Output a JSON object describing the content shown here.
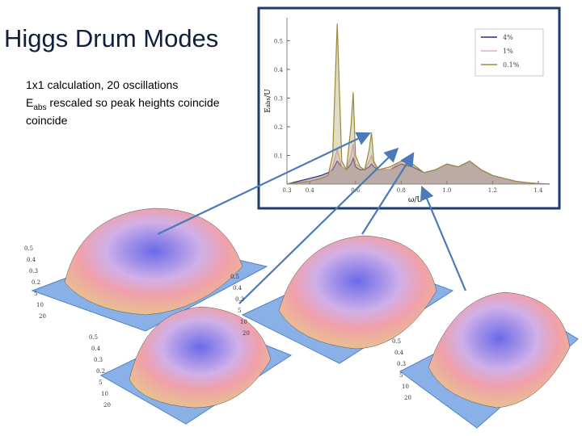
{
  "slide": {
    "title": "Higgs Drum Modes",
    "body": {
      "line1": "1x1  calculation, 20 oscillations",
      "line2_main": "E",
      "line2_sub": "abs",
      "line2_tail": " rescaled so peak heights coincide",
      "line3": "coincide"
    }
  },
  "chart_data": {
    "type": "line",
    "x_label": "ω/U",
    "y_label_main": "E",
    "y_label_sub": "abs",
    "y_label_tail": "/U",
    "x": [
      0.3,
      0.35,
      0.4,
      0.45,
      0.48,
      0.5,
      0.52,
      0.54,
      0.56,
      0.58,
      0.59,
      0.6,
      0.62,
      0.64,
      0.66,
      0.67,
      0.68,
      0.7,
      0.75,
      0.8,
      0.85,
      0.9,
      0.95,
      1.0,
      1.05,
      1.1,
      1.15,
      1.2,
      1.25,
      1.3,
      1.35,
      1.4,
      1.45
    ],
    "series": [
      {
        "name": "4%",
        "color": "#2b2b7a",
        "values": [
          0,
          0.01,
          0.02,
          0.03,
          0.04,
          0.05,
          0.08,
          0.06,
          0.05,
          0.07,
          0.09,
          0.06,
          0.05,
          0.05,
          0.06,
          0.07,
          0.06,
          0.05,
          0.05,
          0.07,
          0.06,
          0.04,
          0.05,
          0.07,
          0.06,
          0.08,
          0.05,
          0.03,
          0.02,
          0.01,
          0.005,
          0.002,
          0
        ]
      },
      {
        "name": "1%",
        "color": "#e0a8d0",
        "values": [
          0,
          0.005,
          0.01,
          0.02,
          0.03,
          0.06,
          0.12,
          0.06,
          0.05,
          0.1,
          0.14,
          0.07,
          0.06,
          0.05,
          0.08,
          0.1,
          0.07,
          0.05,
          0.05,
          0.08,
          0.07,
          0.04,
          0.05,
          0.07,
          0.06,
          0.08,
          0.05,
          0.03,
          0.02,
          0.01,
          0.005,
          0.002,
          0
        ]
      },
      {
        "name": "0.1%",
        "color": "#9a8a3a",
        "values": [
          0,
          0.005,
          0.01,
          0.02,
          0.03,
          0.1,
          0.56,
          0.08,
          0.05,
          0.2,
          0.32,
          0.1,
          0.06,
          0.05,
          0.12,
          0.18,
          0.08,
          0.05,
          0.06,
          0.08,
          0.07,
          0.04,
          0.05,
          0.07,
          0.06,
          0.08,
          0.05,
          0.03,
          0.02,
          0.01,
          0.005,
          0.002,
          0
        ]
      }
    ],
    "xlim": [
      0.3,
      1.45
    ],
    "xticks": [
      0.3,
      0.4,
      0.6,
      0.8,
      {
        "value": 1,
        "label": "1.0"
      },
      1.2,
      1.4
    ],
    "ylim": [
      0,
      0.58
    ],
    "yticks": [
      0.1,
      0.2,
      0.3,
      0.4,
      0.5
    ],
    "legend": "top-right"
  },
  "surface_plots": [
    {
      "labels": [
        "0.5",
        "0.4",
        "0.3",
        "0.2",
        "5",
        "10",
        "20"
      ]
    },
    {
      "labels": [
        "0.5",
        "0.4",
        "0.3",
        "0.2",
        "5",
        "10",
        "20"
      ]
    },
    {
      "labels": [
        "0.5",
        "0.4",
        "0.3",
        "5",
        "10",
        "20"
      ]
    },
    {
      "labels": [
        "0.5",
        "0.4",
        "0.3",
        "5",
        "10",
        "20"
      ]
    }
  ]
}
